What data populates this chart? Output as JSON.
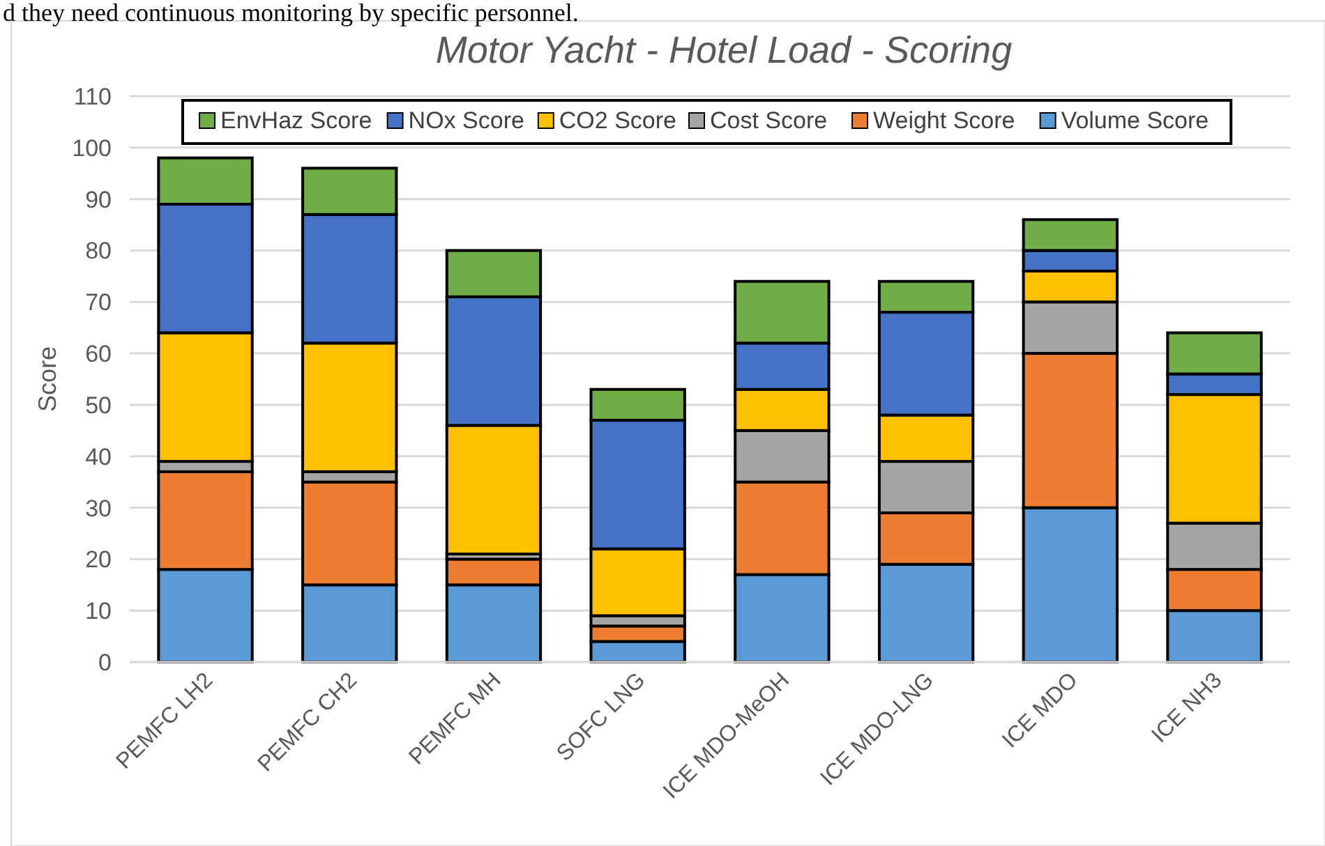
{
  "chart_data": {
    "type": "bar",
    "title": "Motor Yacht - Hotel Load - Scoring",
    "ylabel": "Score",
    "annotations": [
      "d they need continuous monitoring by specific personnel."
    ],
    "categories": [
      "PEMFC LH2",
      "PEMFC CH2",
      "PEMFC MH",
      "SOFC LNG",
      "ICE MDO-MeOH",
      "ICE MDO-LNG",
      "ICE MDO",
      "ICE NH3"
    ],
    "stacked": true,
    "ylim": [
      0,
      110
    ],
    "yticks": [
      0,
      10,
      20,
      30,
      40,
      50,
      60,
      70,
      80,
      90,
      100,
      110
    ],
    "grid": "y",
    "legend": "top",
    "series": [
      {
        "name": "Volume Score",
        "color": "#5b9bd5",
        "values": [
          18,
          15,
          15,
          4,
          17,
          19,
          30,
          10
        ]
      },
      {
        "name": "Weight Score",
        "color": "#ed7d31",
        "values": [
          19,
          20,
          5,
          3,
          18,
          10,
          30,
          8
        ]
      },
      {
        "name": "Cost Score",
        "color": "#a5a5a5",
        "values": [
          2,
          2,
          1,
          2,
          10,
          10,
          10,
          9
        ]
      },
      {
        "name": "CO2 Score",
        "color": "#ffc000",
        "values": [
          25,
          25,
          25,
          13,
          8,
          9,
          6,
          25
        ]
      },
      {
        "name": "NOx Score",
        "color": "#4472c4",
        "values": [
          25,
          25,
          25,
          25,
          9,
          20,
          4,
          4
        ]
      },
      {
        "name": "EnvHaz Score",
        "color": "#70ad47",
        "values": [
          9,
          9,
          9,
          6,
          12,
          6,
          6,
          8
        ]
      }
    ]
  }
}
